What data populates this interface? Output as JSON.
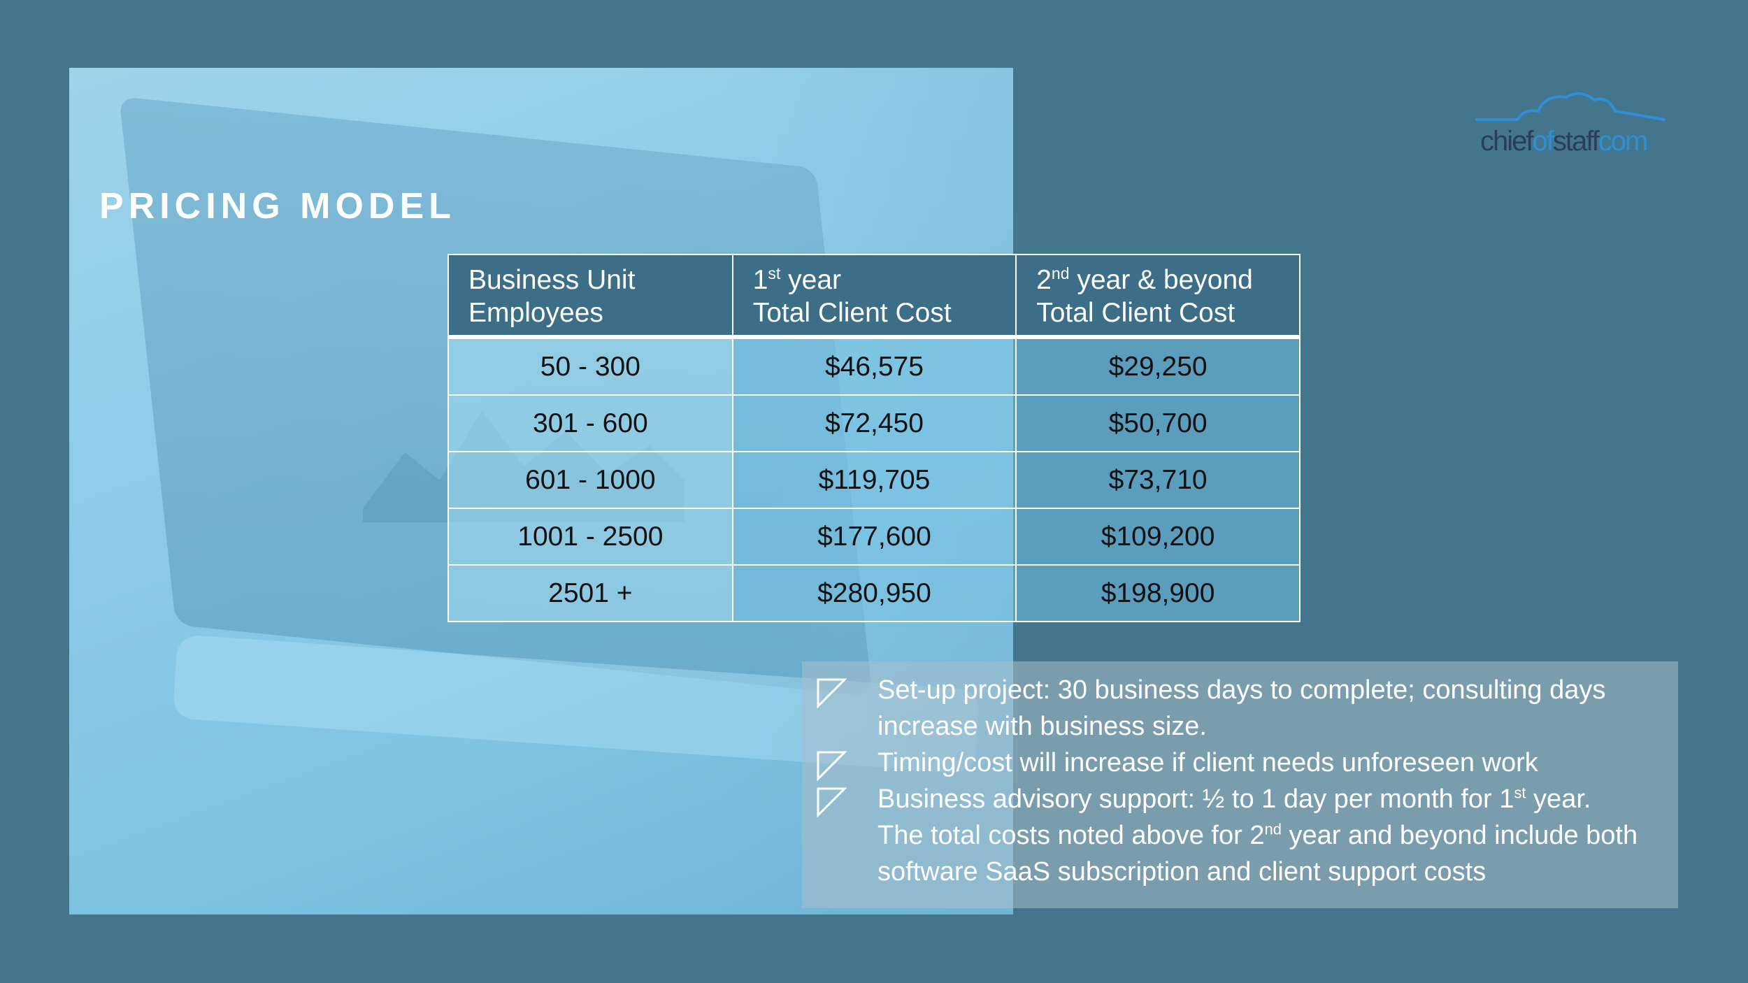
{
  "title": "PRICING MODEL",
  "logo": {
    "part1": "chief",
    "part2": "of",
    "part3": "staff",
    "part4": "com",
    "accent_color": "#2f8fd6",
    "text_color": "#2a3d5c"
  },
  "table": {
    "headers": [
      {
        "line1": "Business Unit",
        "line2": "Employees"
      },
      {
        "line1_num": "1",
        "line1_sup": "st",
        "line1_rest": " year",
        "line2": "Total Client Cost"
      },
      {
        "line1_num": "2",
        "line1_sup": "nd",
        "line1_rest": " year & beyond",
        "line2": "Total Client Cost"
      }
    ],
    "rows": [
      [
        "50 - 300",
        "$46,575",
        "$29,250"
      ],
      [
        "301 - 600",
        "$72,450",
        "$50,700"
      ],
      [
        "601 - 1000",
        "$119,705",
        "$73,710"
      ],
      [
        "1001 - 2500",
        "$177,600",
        "$109,200"
      ],
      [
        "2501 +",
        "$280,950",
        "$198,900"
      ]
    ]
  },
  "notes": {
    "n1_line1": "Set-up project: 30 business days to complete; consulting days",
    "n1_line2": "increase with business size.",
    "n2": "Timing/cost will increase if client needs unforeseen work",
    "n3_a": "Business advisory support: ½ to 1 day per month for 1",
    "n3_sup": "st",
    "n3_b": " year.",
    "n3_c": "The total costs noted above for 2",
    "n3_sup2": "nd",
    "n3_d": " year and beyond include both",
    "n3_e": "software SaaS subscription and client support costs",
    "bullet_icon": "triangle-bullet-icon"
  },
  "colors": {
    "background": "#43758d",
    "header_bg": "#3d6e88"
  }
}
